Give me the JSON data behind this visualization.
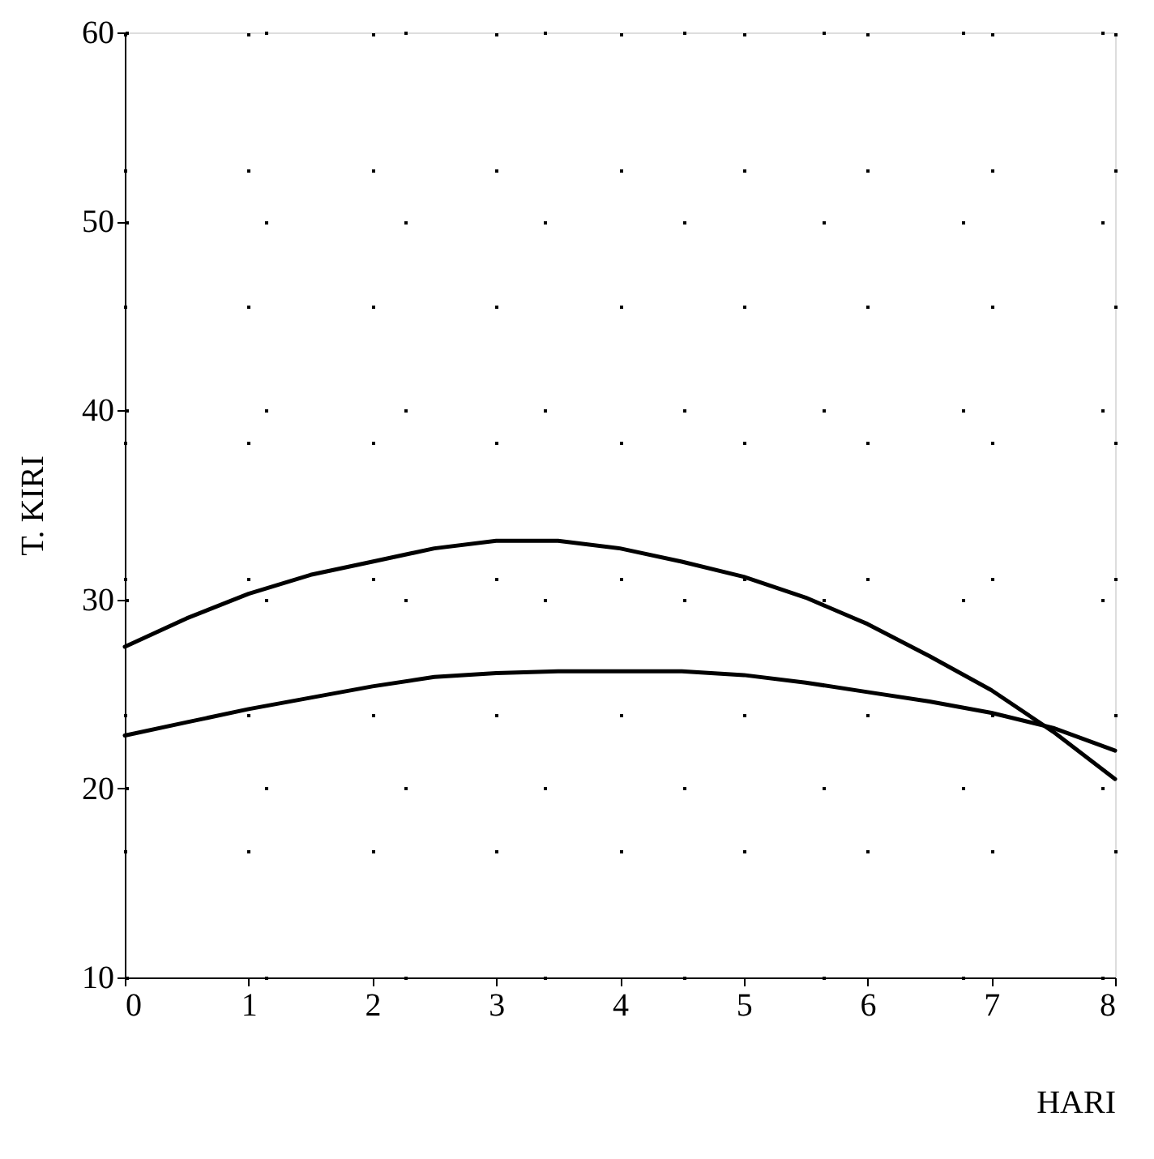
{
  "chart_data": {
    "type": "line",
    "xlabel": "HARI",
    "ylabel": "T. KIRI",
    "x": [
      0,
      0.5,
      1,
      1.5,
      2,
      2.5,
      3,
      3.5,
      4,
      4.5,
      5,
      5.5,
      6,
      6.5,
      7,
      7.5,
      8
    ],
    "series": [
      {
        "color": "#000000",
        "values": [
          27.5,
          29,
          30.3,
          31.3,
          32,
          32.7,
          33.1,
          33.1,
          32.7,
          32,
          31.2,
          30.1,
          28.7,
          27,
          25.2,
          23,
          20.5
        ]
      },
      {
        "color": "#000000",
        "values": [
          22.8,
          23.5,
          24.2,
          24.8,
          25.4,
          25.9,
          26.1,
          26.2,
          26.2,
          26.2,
          26,
          25.6,
          25.1,
          24.6,
          24,
          23.2,
          22
        ]
      }
    ],
    "xlim": [
      0,
      8
    ],
    "xticks": [
      0,
      1,
      2,
      3,
      4,
      5,
      6,
      7,
      8
    ],
    "ylim": [
      10,
      60
    ],
    "yticks": [
      10,
      20,
      30,
      40,
      50,
      60
    ],
    "grid": true,
    "marker": "none",
    "line_style": "solid"
  }
}
